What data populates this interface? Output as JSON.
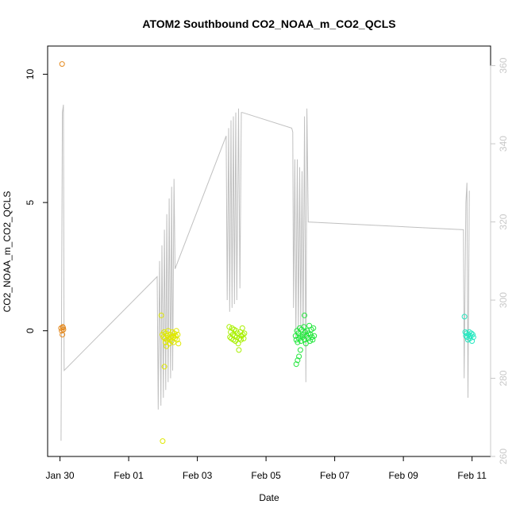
{
  "chart_data": {
    "type": "scatter",
    "title": "ATOM2 Southbound CO2_NOAA_m_CO2_QCLS",
    "xlabel": "Date",
    "ylabel": "CO2_NOAA_m_CO2_QCLS",
    "x_ticks": [
      {
        "day": 0,
        "label": "Jan 30"
      },
      {
        "day": 2,
        "label": "Feb 01"
      },
      {
        "day": 4,
        "label": "Feb 03"
      },
      {
        "day": 6,
        "label": "Feb 05"
      },
      {
        "day": 8,
        "label": "Feb 07"
      },
      {
        "day": 10,
        "label": "Feb 09"
      },
      {
        "day": 12,
        "label": "Feb 11"
      }
    ],
    "xlim": [
      -0.36,
      12.54
    ],
    "ylim": [
      -4.9,
      11.1
    ],
    "y_ticks": [
      0,
      5,
      10
    ],
    "y2lim": [
      260,
      365
    ],
    "y2_ticks": [
      260,
      280,
      300,
      320,
      340,
      360
    ],
    "series": [
      {
        "color": "#e58a1f",
        "points": [
          [
            0.06,
            10.4
          ],
          [
            0.08,
            0.15
          ],
          [
            0.1,
            0.05
          ],
          [
            0.03,
            0.1
          ],
          [
            0.09,
            0.12
          ],
          [
            0.05,
            0.0
          ],
          [
            0.07,
            -0.15
          ]
        ]
      },
      {
        "color": "#dfe800",
        "points": [
          [
            2.95,
            0.6
          ],
          [
            2.98,
            -0.15
          ],
          [
            3.01,
            -0.25
          ],
          [
            3.03,
            -0.05
          ],
          [
            3.05,
            -0.3
          ],
          [
            3.07,
            -0.45
          ],
          [
            3.09,
            -0.1
          ],
          [
            3.11,
            -0.35
          ],
          [
            3.13,
            -0.2
          ],
          [
            3.15,
            0.0
          ],
          [
            3.17,
            -0.3
          ],
          [
            3.19,
            -0.5
          ],
          [
            3.21,
            -0.15
          ],
          [
            3.23,
            -0.25
          ],
          [
            3.25,
            -0.4
          ],
          [
            3.27,
            -0.05
          ],
          [
            3.29,
            -0.2
          ],
          [
            3.31,
            -0.45
          ],
          [
            3.33,
            -0.1
          ],
          [
            3.35,
            -0.3
          ],
          [
            3.37,
            -0.2
          ],
          [
            3.39,
            0.0
          ],
          [
            3.41,
            -0.35
          ],
          [
            3.43,
            -0.15
          ],
          [
            3.45,
            -0.5
          ],
          [
            3.04,
            -1.4
          ],
          [
            2.99,
            -4.3
          ],
          [
            3.1,
            -0.6
          ],
          [
            3.2,
            -0.35
          ],
          [
            3.3,
            -0.25
          ]
        ]
      },
      {
        "color": "#a8f000",
        "points": [
          [
            4.93,
            0.15
          ],
          [
            4.95,
            -0.25
          ],
          [
            4.97,
            -0.05
          ],
          [
            4.99,
            -0.3
          ],
          [
            5.01,
            0.1
          ],
          [
            5.03,
            -0.15
          ],
          [
            5.05,
            -0.35
          ],
          [
            5.07,
            0.05
          ],
          [
            5.09,
            -0.2
          ],
          [
            5.11,
            -0.4
          ],
          [
            5.13,
            0.0
          ],
          [
            5.15,
            -0.25
          ],
          [
            5.17,
            -0.1
          ],
          [
            5.19,
            -0.5
          ],
          [
            5.21,
            -0.75
          ],
          [
            5.23,
            -0.3
          ],
          [
            5.25,
            -0.05
          ],
          [
            5.27,
            -0.35
          ],
          [
            5.29,
            -0.2
          ],
          [
            5.31,
            0.1
          ],
          [
            5.33,
            -0.15
          ],
          [
            5.35,
            -0.3
          ],
          [
            5.37,
            -0.1
          ]
        ]
      },
      {
        "color": "#22e63c",
        "points": [
          [
            6.86,
            -0.2
          ],
          [
            6.88,
            -0.35
          ],
          [
            6.9,
            0.0
          ],
          [
            6.92,
            -0.45
          ],
          [
            6.94,
            -0.1
          ],
          [
            6.96,
            -0.3
          ],
          [
            6.98,
            0.1
          ],
          [
            7.0,
            -0.2
          ],
          [
            7.02,
            -0.4
          ],
          [
            7.04,
            0.05
          ],
          [
            7.06,
            -0.25
          ],
          [
            7.08,
            -0.15
          ],
          [
            7.1,
            0.15
          ],
          [
            7.12,
            -0.35
          ],
          [
            7.14,
            -0.05
          ],
          [
            7.16,
            -0.5
          ],
          [
            7.18,
            -0.2
          ],
          [
            7.2,
            0.0
          ],
          [
            7.22,
            -0.3
          ],
          [
            7.24,
            -0.1
          ],
          [
            7.26,
            0.2
          ],
          [
            7.28,
            -0.4
          ],
          [
            7.3,
            -0.15
          ],
          [
            7.32,
            0.05
          ],
          [
            7.34,
            -0.25
          ],
          [
            7.36,
            -0.35
          ],
          [
            7.38,
            0.1
          ],
          [
            7.4,
            -0.2
          ],
          [
            7.12,
            0.6
          ],
          [
            7.0,
            -0.75
          ],
          [
            6.96,
            -1.0
          ],
          [
            6.92,
            -1.15
          ],
          [
            6.88,
            -1.3
          ]
        ]
      },
      {
        "color": "#25e8c0",
        "points": [
          [
            11.78,
            0.55
          ],
          [
            11.8,
            -0.05
          ],
          [
            11.82,
            -0.2
          ],
          [
            11.84,
            -0.1
          ],
          [
            11.86,
            -0.25
          ],
          [
            11.88,
            -0.35
          ],
          [
            11.9,
            -0.15
          ],
          [
            11.92,
            -0.05
          ],
          [
            11.94,
            -0.3
          ],
          [
            11.96,
            -0.2
          ],
          [
            11.98,
            -0.1
          ],
          [
            12.0,
            -0.4
          ],
          [
            12.02,
            -0.15
          ],
          [
            12.04,
            -0.25
          ]
        ]
      }
    ],
    "overlay_line": {
      "color": "#c0c0c0",
      "y2": [
        [
          0.03,
          264
        ],
        [
          0.07,
          348
        ],
        [
          0.1,
          350
        ],
        [
          0.12,
          282
        ],
        [
          2.83,
          306
        ],
        [
          2.86,
          272
        ],
        [
          2.9,
          310
        ],
        [
          2.94,
          273
        ],
        [
          2.97,
          314
        ],
        [
          3.01,
          275
        ],
        [
          3.04,
          318
        ],
        [
          3.08,
          277
        ],
        [
          3.11,
          322
        ],
        [
          3.15,
          279
        ],
        [
          3.18,
          326
        ],
        [
          3.22,
          280
        ],
        [
          3.25,
          329
        ],
        [
          3.28,
          282
        ],
        [
          3.32,
          331
        ],
        [
          3.35,
          308
        ],
        [
          4.84,
          342
        ],
        [
          4.87,
          300
        ],
        [
          4.91,
          344
        ],
        [
          4.94,
          297
        ],
        [
          4.98,
          346
        ],
        [
          5.01,
          298
        ],
        [
          5.05,
          347
        ],
        [
          5.08,
          299
        ],
        [
          5.12,
          348
        ],
        [
          5.15,
          300
        ],
        [
          5.2,
          349
        ],
        [
          5.24,
          303
        ],
        [
          5.28,
          348
        ],
        [
          5.31,
          348
        ],
        [
          6.75,
          344
        ],
        [
          6.78,
          343
        ],
        [
          6.8,
          298
        ],
        [
          6.84,
          336
        ],
        [
          6.87,
          290
        ],
        [
          6.91,
          336
        ],
        [
          6.94,
          292
        ],
        [
          6.98,
          334
        ],
        [
          7.01,
          293
        ],
        [
          7.05,
          333
        ],
        [
          7.08,
          290
        ],
        [
          7.12,
          347
        ],
        [
          7.16,
          279
        ],
        [
          7.19,
          349
        ],
        [
          7.23,
          320
        ],
        [
          11.75,
          318
        ],
        [
          11.77,
          280
        ],
        [
          11.82,
          325
        ],
        [
          11.85,
          330
        ],
        [
          11.88,
          275
        ],
        [
          11.92,
          328
        ]
      ]
    }
  }
}
